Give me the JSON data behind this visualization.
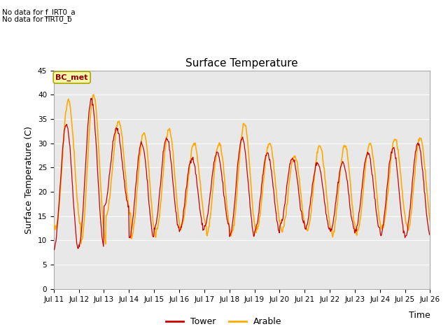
{
  "title": "Surface Temperature",
  "ylabel": "Surface Temperature (C)",
  "xlabel": "Time",
  "ylim": [
    0,
    45
  ],
  "yticks": [
    0,
    5,
    10,
    15,
    20,
    25,
    30,
    35,
    40,
    45
  ],
  "xtick_labels": [
    "Jul 11",
    "Jul 12",
    "Jul 13",
    "Jul 14",
    "Jul 15",
    "Jul 16",
    "Jul 17",
    "Jul 18",
    "Jul 19",
    "Jul 20",
    "Jul 21",
    "Jul 22",
    "Jul 23",
    "Jul 24",
    "Jul 25",
    "Jul 26"
  ],
  "no_data_text1": "No data for f_IRT0_a",
  "no_data_text2": "No data for f̅IRT0̅_b",
  "bc_met_label": "BC_met",
  "tower_color": "#cc0000",
  "arable_color": "#ffaa00",
  "bg_color": "#e8e8e8",
  "tower_label": "Tower",
  "arable_label": "Arable",
  "title_fontsize": 11,
  "axis_label_fontsize": 9,
  "tick_fontsize": 7.5,
  "n_days": 15,
  "n_per_day": 48,
  "tower_mins": [
    8,
    9,
    17,
    10.5,
    12.5,
    12,
    13,
    11,
    12,
    13,
    12.5,
    12,
    12,
    11,
    11
  ],
  "tower_maxs": [
    34,
    39,
    33,
    30,
    31,
    27,
    28,
    31,
    28,
    27,
    26,
    26,
    28,
    29,
    30
  ],
  "arable_mins": [
    13,
    9.5,
    15,
    10.5,
    12,
    13,
    11,
    11.5,
    12.5,
    12,
    12,
    11,
    12,
    13,
    12
  ],
  "arable_maxs": [
    39,
    40,
    34.5,
    32,
    33,
    30,
    30,
    34,
    30,
    27.5,
    29.5,
    29.5,
    30,
    31,
    31
  ],
  "arable_shift": 4
}
